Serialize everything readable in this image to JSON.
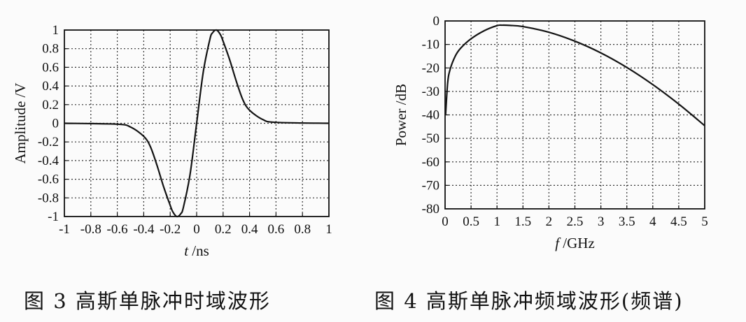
{
  "chart_data": [
    {
      "type": "line",
      "title": "",
      "xlabel": "t /ns",
      "ylabel": "Amplitude /V",
      "xlim": [
        -1,
        1
      ],
      "ylim": [
        -1,
        1
      ],
      "xticks": [
        "-1",
        "-0.8",
        "-0.6",
        "-0.4",
        "-0.2",
        "0",
        "0.2",
        "0.4",
        "0.6",
        "0.8",
        "1"
      ],
      "yticks": [
        "1",
        "0.8",
        "0.6",
        "0.4",
        "0.2",
        "0",
        "-0.2",
        "-0.4",
        "-0.6",
        "-0.8",
        "-1"
      ],
      "grid": true,
      "series": [
        {
          "x": [
            -1.0,
            -0.6,
            -0.5,
            -0.4,
            -0.35,
            -0.3,
            -0.25,
            -0.2,
            -0.18,
            -0.15,
            -0.12,
            -0.1,
            -0.05,
            0.0,
            0.05,
            0.1,
            0.12,
            0.15,
            0.18,
            0.2,
            0.25,
            0.3,
            0.35,
            0.4,
            0.5,
            0.6,
            1.0
          ],
          "values": [
            0.0,
            -0.01,
            -0.04,
            -0.14,
            -0.25,
            -0.45,
            -0.68,
            -0.88,
            -0.95,
            -1.0,
            -0.97,
            -0.9,
            -0.55,
            0.0,
            0.55,
            0.9,
            0.97,
            1.0,
            0.95,
            0.88,
            0.68,
            0.45,
            0.25,
            0.14,
            0.04,
            0.01,
            0.0
          ]
        }
      ]
    },
    {
      "type": "line",
      "title": "",
      "xlabel": "f /GHz",
      "ylabel": "Power /dB",
      "xlim": [
        0,
        5
      ],
      "ylim": [
        -80,
        0
      ],
      "xticks": [
        "0",
        "0.5",
        "1",
        "1.5",
        "2",
        "2.5",
        "3",
        "3.5",
        "4",
        "4.5",
        "5"
      ],
      "yticks": [
        "0",
        "-10",
        "-20",
        "-30",
        "-40",
        "-50",
        "-60",
        "-70",
        "-80"
      ],
      "grid": true,
      "series": [
        {
          "x": [
            0.01,
            0.05,
            0.1,
            0.2,
            0.3,
            0.5,
            0.75,
            1.0,
            1.1,
            1.25,
            1.5,
            2.0,
            2.5,
            3.0,
            3.5,
            4.0,
            4.5,
            5.0
          ],
          "values": [
            -40.0,
            -26.3,
            -20.4,
            -14.8,
            -11.6,
            -7.6,
            -4.2,
            -2.0,
            -1.8,
            -1.9,
            -2.4,
            -4.8,
            -8.6,
            -13.6,
            -19.8,
            -27.1,
            -35.4,
            -44.6
          ]
        }
      ]
    }
  ],
  "captions": {
    "fig3": "图 3   高斯单脉冲时域波形",
    "fig4": "图 4   高斯单脉冲频域波形(频谱)"
  },
  "colors": {
    "line": "#141414",
    "grid": "#333333",
    "background": "#fbfbfb"
  }
}
